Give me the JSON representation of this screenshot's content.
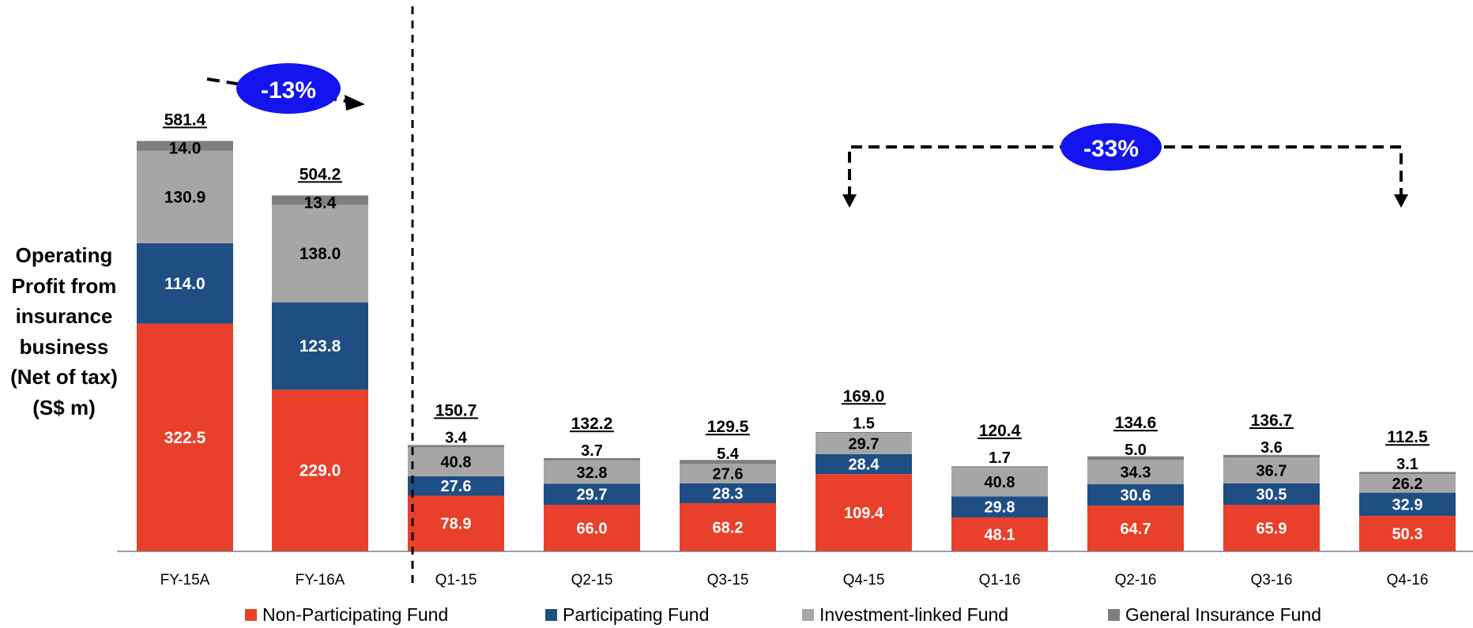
{
  "chart_data": {
    "type": "bar",
    "stacked": true,
    "title": "",
    "ylabel_lines": [
      "Operating",
      "Profit from",
      "insurance",
      "business",
      "(Net of tax)",
      "(S$ m)"
    ],
    "categories": [
      "FY-15A",
      "FY-16A",
      "Q1-15",
      "Q2-15",
      "Q3-15",
      "Q4-15",
      "Q1-16",
      "Q2-16",
      "Q3-16",
      "Q4-16"
    ],
    "series": [
      {
        "name": "Non-Participating Fund",
        "color": "#e8402a",
        "values": [
          322.5,
          229.0,
          78.9,
          66.0,
          68.2,
          109.4,
          48.1,
          64.7,
          65.9,
          50.3
        ]
      },
      {
        "name": "Participating Fund",
        "color": "#1f4e84",
        "values": [
          114.0,
          123.8,
          27.6,
          29.7,
          28.3,
          28.4,
          29.8,
          30.6,
          30.5,
          32.9
        ]
      },
      {
        "name": "Investment-linked Fund",
        "color": "#a6a6a6",
        "values": [
          130.9,
          138.0,
          40.8,
          32.8,
          27.6,
          29.7,
          40.8,
          34.3,
          36.7,
          26.2
        ]
      },
      {
        "name": "General Insurance Fund",
        "color": "#7f7f7f",
        "values": [
          14.0,
          13.4,
          3.4,
          3.7,
          5.4,
          1.5,
          1.7,
          5.0,
          3.6,
          3.1
        ]
      }
    ],
    "totals": [
      581.4,
      504.2,
      150.7,
      132.2,
      129.5,
      169.0,
      120.4,
      134.6,
      136.7,
      112.5
    ],
    "annotations": [
      {
        "text": "-13%",
        "from": "FY-15A",
        "to": "FY-16A"
      },
      {
        "text": "-33%",
        "from": "Q4-15",
        "to": "Q4-16"
      }
    ],
    "legend_position": "bottom",
    "grid": false
  }
}
